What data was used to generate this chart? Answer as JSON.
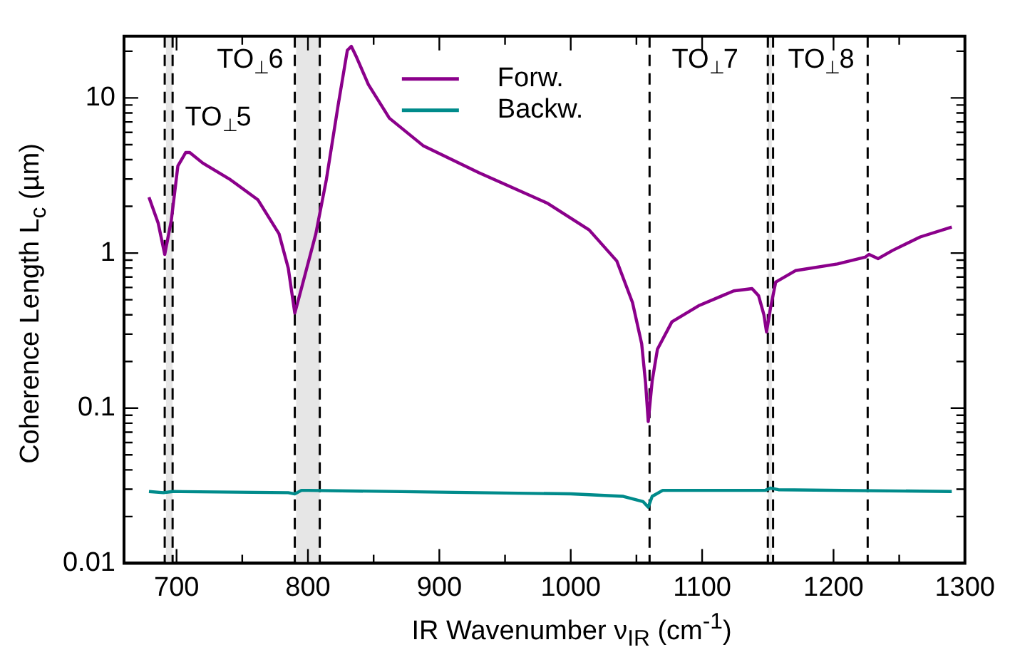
{
  "chart_data": {
    "type": "line",
    "xlabel": "IR Wavenumber ν$_{IR}$ (cm$^{-1}$)",
    "ylabel": "Coherence Length L$_{c}$ (µm)",
    "log": "y",
    "grid": false,
    "legend": "top",
    "line_style": "solid",
    "marker": "none",
    "xlim": [
      660,
      1300
    ],
    "xticks": [
      700,
      {
        "value": 750,
        "label": null
      },
      800,
      {
        "value": 850,
        "label": null
      },
      900,
      {
        "value": 950,
        "label": null
      },
      1000,
      {
        "value": 1050,
        "label": null
      },
      1100,
      {
        "value": 1150,
        "label": null
      },
      1200,
      {
        "value": 1250,
        "label": null
      },
      1300
    ],
    "ylim": [
      0.01,
      25
    ],
    "yticks": [
      0.01,
      {
        "value": 0.02,
        "label": null
      },
      {
        "value": 0.03,
        "label": null
      },
      {
        "value": 0.04,
        "label": null
      },
      {
        "value": 0.05,
        "label": null
      },
      {
        "value": 0.06,
        "label": null
      },
      {
        "value": 0.07,
        "label": null
      },
      {
        "value": 0.08,
        "label": null
      },
      {
        "value": 0.09,
        "label": null
      },
      0.1,
      {
        "value": 0.2,
        "label": null
      },
      {
        "value": 0.3,
        "label": null
      },
      {
        "value": 0.4,
        "label": null
      },
      {
        "value": 0.5,
        "label": null
      },
      {
        "value": 0.6,
        "label": null
      },
      {
        "value": 0.7,
        "label": null
      },
      {
        "value": 0.8,
        "label": null
      },
      {
        "value": 0.9,
        "label": null
      },
      1,
      {
        "value": 2,
        "label": null
      },
      {
        "value": 3,
        "label": null
      },
      {
        "value": 4,
        "label": null
      },
      {
        "value": 5,
        "label": null
      },
      {
        "value": 6,
        "label": null
      },
      {
        "value": 7,
        "label": null
      },
      {
        "value": 8,
        "label": null
      },
      {
        "value": 9,
        "label": null
      },
      10,
      {
        "value": 20,
        "label": null
      }
    ],
    "series": [
      {
        "name": "Forw.",
        "color": "#8b008b",
        "x": [
          679,
          686,
          691,
          696,
          701,
          707,
          710,
          720,
          741,
          762,
          778,
          785,
          790,
          795,
          806,
          814,
          823,
          830,
          833,
          837,
          846,
          862,
          888,
          930,
          982,
          1014,
          1035,
          1047,
          1054,
          1057,
          1059,
          1062,
          1066,
          1077,
          1098,
          1124,
          1138,
          1143,
          1147,
          1149,
          1152,
          1156,
          1171,
          1203,
          1224,
          1227,
          1234,
          1245,
          1266,
          1290
        ],
        "values": [
          2.29,
          1.56,
          0.98,
          1.62,
          3.64,
          4.45,
          4.45,
          3.8,
          2.97,
          2.2,
          1.33,
          0.8,
          0.41,
          0.59,
          1.33,
          2.97,
          9.0,
          20.3,
          21.5,
          18.3,
          12.2,
          7.4,
          4.9,
          3.3,
          2.1,
          1.41,
          0.89,
          0.48,
          0.26,
          0.144,
          0.082,
          0.15,
          0.24,
          0.36,
          0.46,
          0.57,
          0.59,
          0.53,
          0.4,
          0.31,
          0.44,
          0.65,
          0.77,
          0.85,
          0.94,
          0.98,
          0.92,
          1.04,
          1.27,
          1.47
        ]
      },
      {
        "name": "Backw.",
        "color": "#008b8b",
        "x": [
          679,
          690,
          697,
          785,
          790,
          795,
          800,
          1000,
          1040,
          1055,
          1059,
          1062,
          1070,
          1148,
          1152,
          1158,
          1290
        ],
        "values": [
          0.029,
          0.0285,
          0.029,
          0.0285,
          0.028,
          0.0295,
          0.0295,
          0.028,
          0.027,
          0.025,
          0.023,
          0.027,
          0.0295,
          0.0295,
          0.0305,
          0.0298,
          0.029
        ]
      }
    ],
    "bands": [
      {
        "axis": "x",
        "from": 692,
        "to": 697,
        "color": "#e6e6e6"
      },
      {
        "axis": "x",
        "from": 791,
        "to": 809,
        "color": "#e6e6e6"
      },
      {
        "axis": "x",
        "from": 1150,
        "to": 1153,
        "color": "#e6e6e6"
      }
    ],
    "ref_lines": [
      {
        "axis": "x",
        "value": 691,
        "line_style": "dashed",
        "color": "#000000"
      },
      {
        "axis": "x",
        "value": 697,
        "line_style": "dashed",
        "color": "#000000"
      },
      {
        "axis": "x",
        "value": 790,
        "line_style": "dashed",
        "color": "#000000"
      },
      {
        "axis": "x",
        "value": 809,
        "line_style": "dashed",
        "color": "#000000"
      },
      {
        "axis": "x",
        "value": 1060,
        "line_style": "dashed",
        "color": "#000000"
      },
      {
        "axis": "x",
        "value": 1150,
        "line_style": "dashed",
        "color": "#000000"
      },
      {
        "axis": "x",
        "value": 1154,
        "line_style": "dashed",
        "color": "#000000"
      },
      {
        "axis": "x",
        "value": 1226,
        "line_style": "dashed",
        "color": "#000000"
      }
    ],
    "annotations": [
      "TO$_{⊥}$6",
      "TO$_{⊥}$5",
      "TO$_{⊥}$7",
      "TO$_{⊥}$8"
    ]
  }
}
